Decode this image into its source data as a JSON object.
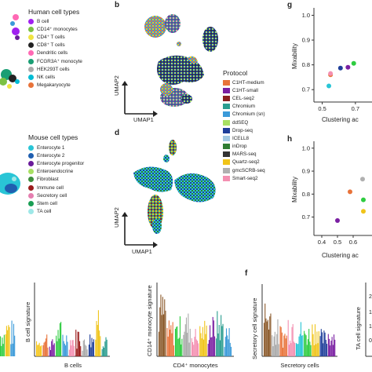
{
  "panels": {
    "b": "b",
    "d": "d",
    "g": "g",
    "h": "h",
    "f": "f"
  },
  "human_legend": {
    "title": "Human cell types",
    "items": [
      {
        "label": "B cell",
        "color": "#a020f0"
      },
      {
        "label": "CD14⁺ monocytes",
        "color": "#7bc143"
      },
      {
        "label": "CD4⁺ T cells",
        "color": "#f0e442"
      },
      {
        "label": "CD8⁺ T cells",
        "color": "#222222"
      },
      {
        "label": "Dendritic cells",
        "color": "#ff69b4"
      },
      {
        "label": "FCGR3A⁺ monocyte",
        "color": "#1a9e74"
      },
      {
        "label": "HEK293T cells",
        "color": "#aaaaaa"
      },
      {
        "label": "NK cells",
        "color": "#00bcd4"
      },
      {
        "label": "Megakaryocyte",
        "color": "#e8733a"
      }
    ]
  },
  "mouse_legend": {
    "title": "Mouse cell types",
    "items": [
      {
        "label": "Enterocyte 1",
        "color": "#29c5d6"
      },
      {
        "label": "Enterocyte 2",
        "color": "#1f5fb0"
      },
      {
        "label": "Enterocyte progenitor",
        "color": "#6a1b9a"
      },
      {
        "label": "Enteroendocrine",
        "color": "#a8e063"
      },
      {
        "label": "Fibroblast",
        "color": "#3e8e3e"
      },
      {
        "label": "Immune cell",
        "color": "#9b1c1c"
      },
      {
        "label": "Secretory cell",
        "color": "#e57fb0"
      },
      {
        "label": "Stem cell",
        "color": "#1a9e54"
      },
      {
        "label": "TA cell",
        "color": "#9ee8e8"
      }
    ]
  },
  "protocol_legend": {
    "title": "Protocol",
    "items": [
      {
        "label": "C1HT-medium",
        "color": "#e8733a"
      },
      {
        "label": "C1HT-small",
        "color": "#7a1fa2"
      },
      {
        "label": "CEL-seq2",
        "color": "#8b2020"
      },
      {
        "label": "Chromium",
        "color": "#2a9d8f"
      },
      {
        "label": "Chromium (sn)",
        "color": "#3b9ad9"
      },
      {
        "label": "ddSEQ",
        "color": "#a8e063"
      },
      {
        "label": "Drop-seq",
        "color": "#1f3f9a"
      },
      {
        "label": "ICELL8",
        "color": "#a3c9e2"
      },
      {
        "label": "inDrop",
        "color": "#2f7d32"
      },
      {
        "label": "MARS-seq",
        "color": "#333333"
      },
      {
        "label": "Quartz-seq2",
        "color": "#f0c419"
      },
      {
        "label": "gmcSCRB-seq",
        "color": "#b0b0b0"
      },
      {
        "label": "Smart-seq2",
        "color": "#f48fb1"
      }
    ]
  },
  "umap_axes": {
    "x": "UMAP1",
    "y": "UMAP2"
  },
  "chart_data": [
    {
      "type": "scatter",
      "panel": "g",
      "xlabel": "Clustering ac",
      "ylabel": "Mixability",
      "x_ticks": [
        "0.5",
        "0.7"
      ],
      "y_ticks": [
        "1.0",
        "0.9",
        "0.8",
        "0.7"
      ],
      "points": [
        {
          "x": 0.55,
          "y": 0.76,
          "color": "#e8733a"
        },
        {
          "x": 0.55,
          "y": 0.765,
          "color": "#f48fb1"
        },
        {
          "x": 0.54,
          "y": 0.715,
          "color": "#29c5d6"
        },
        {
          "x": 0.61,
          "y": 0.787,
          "color": "#1f3f9a"
        },
        {
          "x": 0.655,
          "y": 0.79,
          "color": "#7a1fa2"
        },
        {
          "x": 0.69,
          "y": 0.806,
          "color": "#2ecc40"
        }
      ]
    },
    {
      "type": "scatter",
      "panel": "h",
      "xlabel": "Clustering ac",
      "ylabel": "Mixability",
      "x_ticks": [
        "0.4",
        "0.5",
        "0.6"
      ],
      "y_ticks": [
        "1.0",
        "0.9",
        "0.8",
        "0.7"
      ],
      "points": [
        {
          "x": 0.5,
          "y": 0.685,
          "color": "#7a1fa2"
        },
        {
          "x": 0.58,
          "y": 0.81,
          "color": "#e8733a"
        },
        {
          "x": 0.66,
          "y": 0.865,
          "color": "#b0b0b0"
        },
        {
          "x": 0.665,
          "y": 0.775,
          "color": "#2ecc40"
        },
        {
          "x": 0.665,
          "y": 0.725,
          "color": "#f0c419"
        }
      ]
    }
  ],
  "bottom_panels": {
    "left_clip_label": "",
    "b_cell": {
      "ylabel": "B cell signature",
      "xlabel": "B cells"
    },
    "cd4": {
      "ylabel": "CD14⁺ monocyte signature",
      "xlabel": "CD4⁺ monocytes"
    },
    "secretory": {
      "ylabel": "Secretory cell signature",
      "xlabel": "Secretory cells"
    },
    "ta": {
      "ylabel": "TA cell signature",
      "ticks": [
        "2",
        "1",
        "1",
        "0"
      ]
    }
  }
}
